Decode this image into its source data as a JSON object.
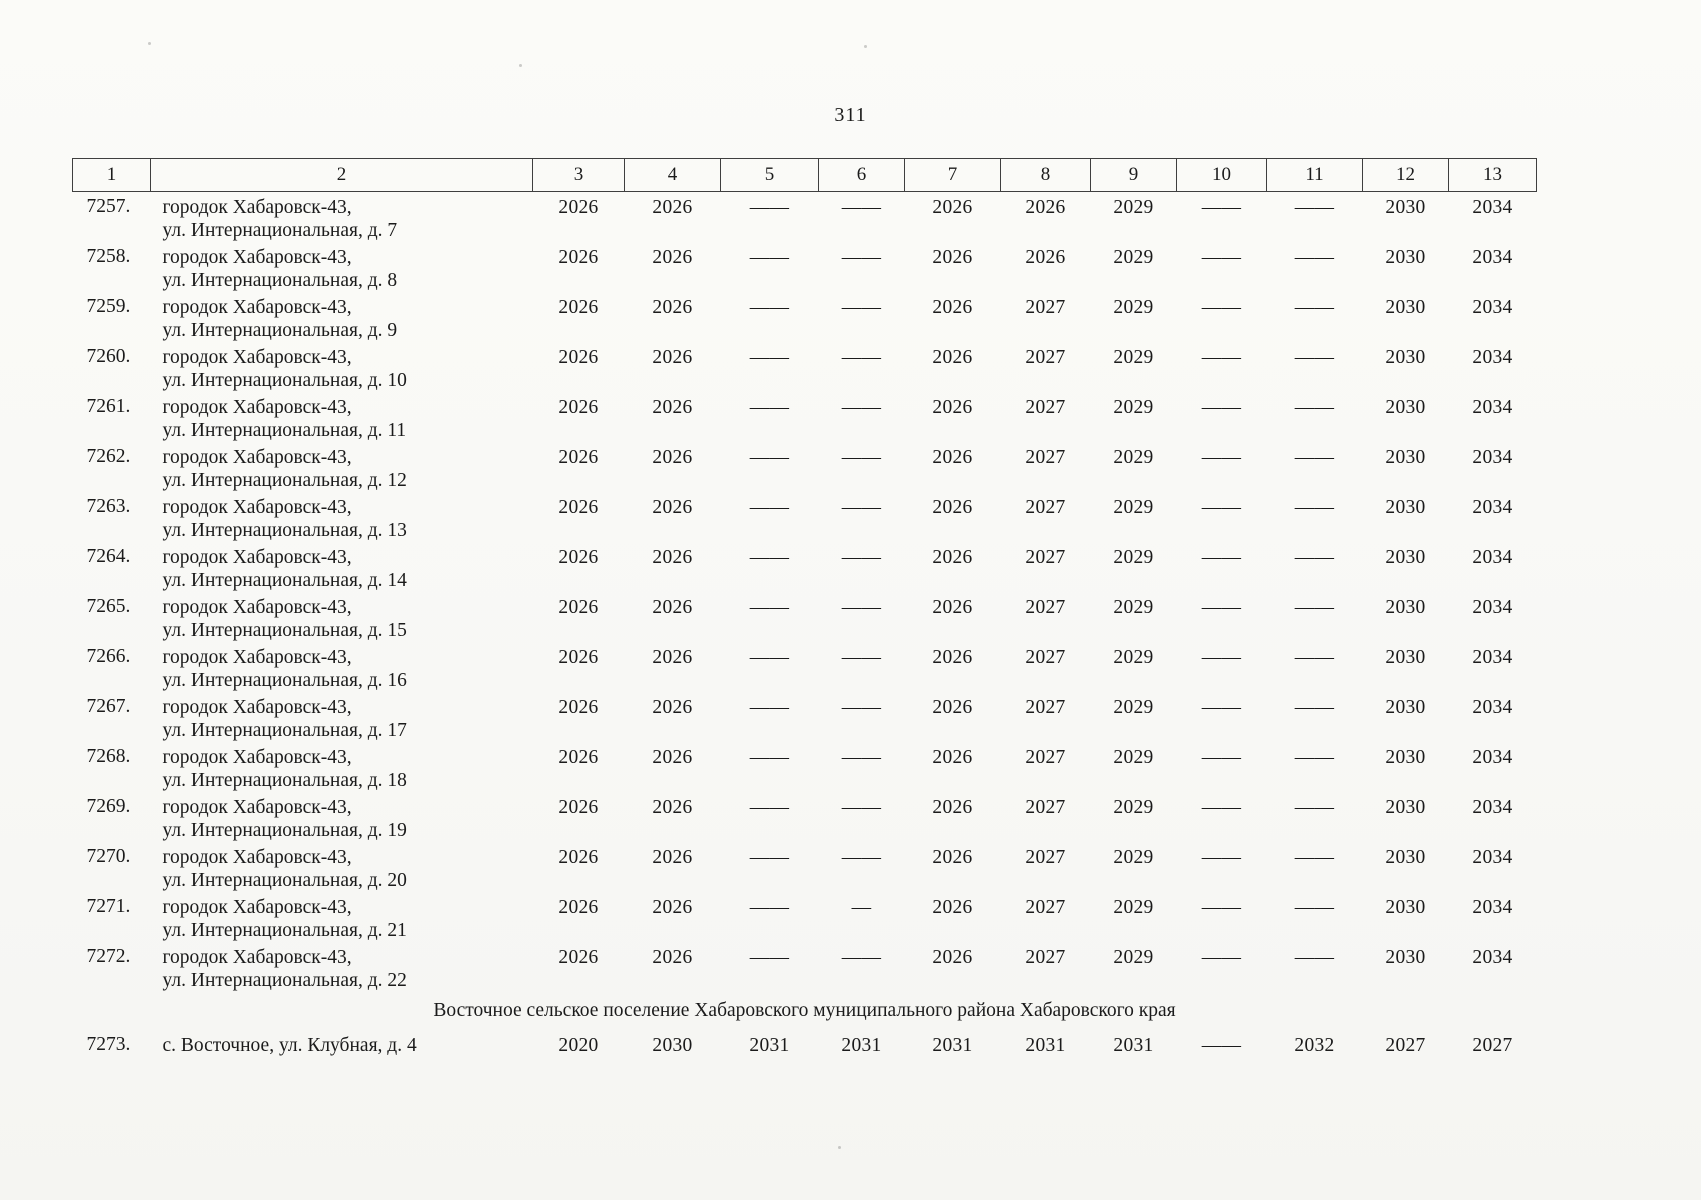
{
  "page_number": "311",
  "table": {
    "column_headers": [
      "1",
      "2",
      "3",
      "4",
      "5",
      "6",
      "7",
      "8",
      "9",
      "10",
      "11",
      "12",
      "13"
    ],
    "rows": [
      {
        "num": "7257.",
        "address": [
          "городок Хабаровск-43,",
          "ул. Интернациональная, д. 7"
        ],
        "values": [
          "2026",
          "2026",
          "——",
          "——",
          "2026",
          "2026",
          "2029",
          "——",
          "——",
          "2030",
          "2034"
        ]
      },
      {
        "num": "7258.",
        "address": [
          "городок Хабаровск-43,",
          "ул. Интернациональная, д. 8"
        ],
        "values": [
          "2026",
          "2026",
          "——",
          "——",
          "2026",
          "2026",
          "2029",
          "——",
          "——",
          "2030",
          "2034"
        ]
      },
      {
        "num": "7259.",
        "address": [
          "городок Хабаровск-43,",
          "ул. Интернациональная, д. 9"
        ],
        "values": [
          "2026",
          "2026",
          "——",
          "——",
          "2026",
          "2027",
          "2029",
          "——",
          "——",
          "2030",
          "2034"
        ]
      },
      {
        "num": "7260.",
        "address": [
          "городок Хабаровск-43,",
          "ул. Интернациональная, д. 10"
        ],
        "values": [
          "2026",
          "2026",
          "——",
          "——",
          "2026",
          "2027",
          "2029",
          "——",
          "——",
          "2030",
          "2034"
        ]
      },
      {
        "num": "7261.",
        "address": [
          "городок Хабаровск-43,",
          "ул. Интернациональная, д. 11"
        ],
        "values": [
          "2026",
          "2026",
          "——",
          "——",
          "2026",
          "2027",
          "2029",
          "——",
          "——",
          "2030",
          "2034"
        ]
      },
      {
        "num": "7262.",
        "address": [
          "городок Хабаровск-43,",
          "ул. Интернациональная, д. 12"
        ],
        "values": [
          "2026",
          "2026",
          "——",
          "——",
          "2026",
          "2027",
          "2029",
          "——",
          "——",
          "2030",
          "2034"
        ]
      },
      {
        "num": "7263.",
        "address": [
          "городок Хабаровск-43,",
          "ул. Интернациональная, д. 13"
        ],
        "values": [
          "2026",
          "2026",
          "——",
          "——",
          "2026",
          "2027",
          "2029",
          "——",
          "——",
          "2030",
          "2034"
        ]
      },
      {
        "num": "7264.",
        "address": [
          "городок Хабаровск-43,",
          "ул. Интернациональная, д. 14"
        ],
        "values": [
          "2026",
          "2026",
          "——",
          "——",
          "2026",
          "2027",
          "2029",
          "——",
          "——",
          "2030",
          "2034"
        ]
      },
      {
        "num": "7265.",
        "address": [
          "городок Хабаровск-43,",
          "ул. Интернациональная, д. 15"
        ],
        "values": [
          "2026",
          "2026",
          "——",
          "——",
          "2026",
          "2027",
          "2029",
          "——",
          "——",
          "2030",
          "2034"
        ]
      },
      {
        "num": "7266.",
        "address": [
          "городок Хабаровск-43,",
          "ул. Интернациональная, д. 16"
        ],
        "values": [
          "2026",
          "2026",
          "——",
          "——",
          "2026",
          "2027",
          "2029",
          "——",
          "——",
          "2030",
          "2034"
        ]
      },
      {
        "num": "7267.",
        "address": [
          "городок Хабаровск-43,",
          "ул. Интернациональная, д. 17"
        ],
        "values": [
          "2026",
          "2026",
          "——",
          "——",
          "2026",
          "2027",
          "2029",
          "——",
          "——",
          "2030",
          "2034"
        ]
      },
      {
        "num": "7268.",
        "address": [
          "городок Хабаровск-43,",
          "ул. Интернациональная, д. 18"
        ],
        "values": [
          "2026",
          "2026",
          "——",
          "——",
          "2026",
          "2027",
          "2029",
          "——",
          "——",
          "2030",
          "2034"
        ]
      },
      {
        "num": "7269.",
        "address": [
          "городок Хабаровск-43,",
          "ул. Интернациональная, д. 19"
        ],
        "values": [
          "2026",
          "2026",
          "——",
          "——",
          "2026",
          "2027",
          "2029",
          "——",
          "——",
          "2030",
          "2034"
        ]
      },
      {
        "num": "7270.",
        "address": [
          "городок Хабаровск-43,",
          "ул. Интернациональная, д. 20"
        ],
        "values": [
          "2026",
          "2026",
          "——",
          "——",
          "2026",
          "2027",
          "2029",
          "——",
          "——",
          "2030",
          "2034"
        ]
      },
      {
        "num": "7271.",
        "address": [
          "городок Хабаровск-43,",
          "ул. Интернациональная, д. 21"
        ],
        "values": [
          "2026",
          "2026",
          "——",
          "—",
          "2026",
          "2027",
          "2029",
          "——",
          "——",
          "2030",
          "2034"
        ]
      },
      {
        "num": "7272.",
        "address": [
          "городок Хабаровск-43,",
          "ул. Интернациональная, д. 22"
        ],
        "values": [
          "2026",
          "2026",
          "——",
          "——",
          "2026",
          "2027",
          "2029",
          "——",
          "——",
          "2030",
          "2034"
        ]
      }
    ],
    "section_header": "Восточное сельское поселение Хабаровского муниципального района Хабаровского края",
    "section_rows": [
      {
        "num": "7273.",
        "address": [
          "с. Восточное, ул. Клубная, д. 4"
        ],
        "values": [
          "2020",
          "2030",
          "2031",
          "2031",
          "2031",
          "2031",
          "2031",
          "——",
          "2032",
          "2027",
          "2027"
        ]
      }
    ]
  }
}
